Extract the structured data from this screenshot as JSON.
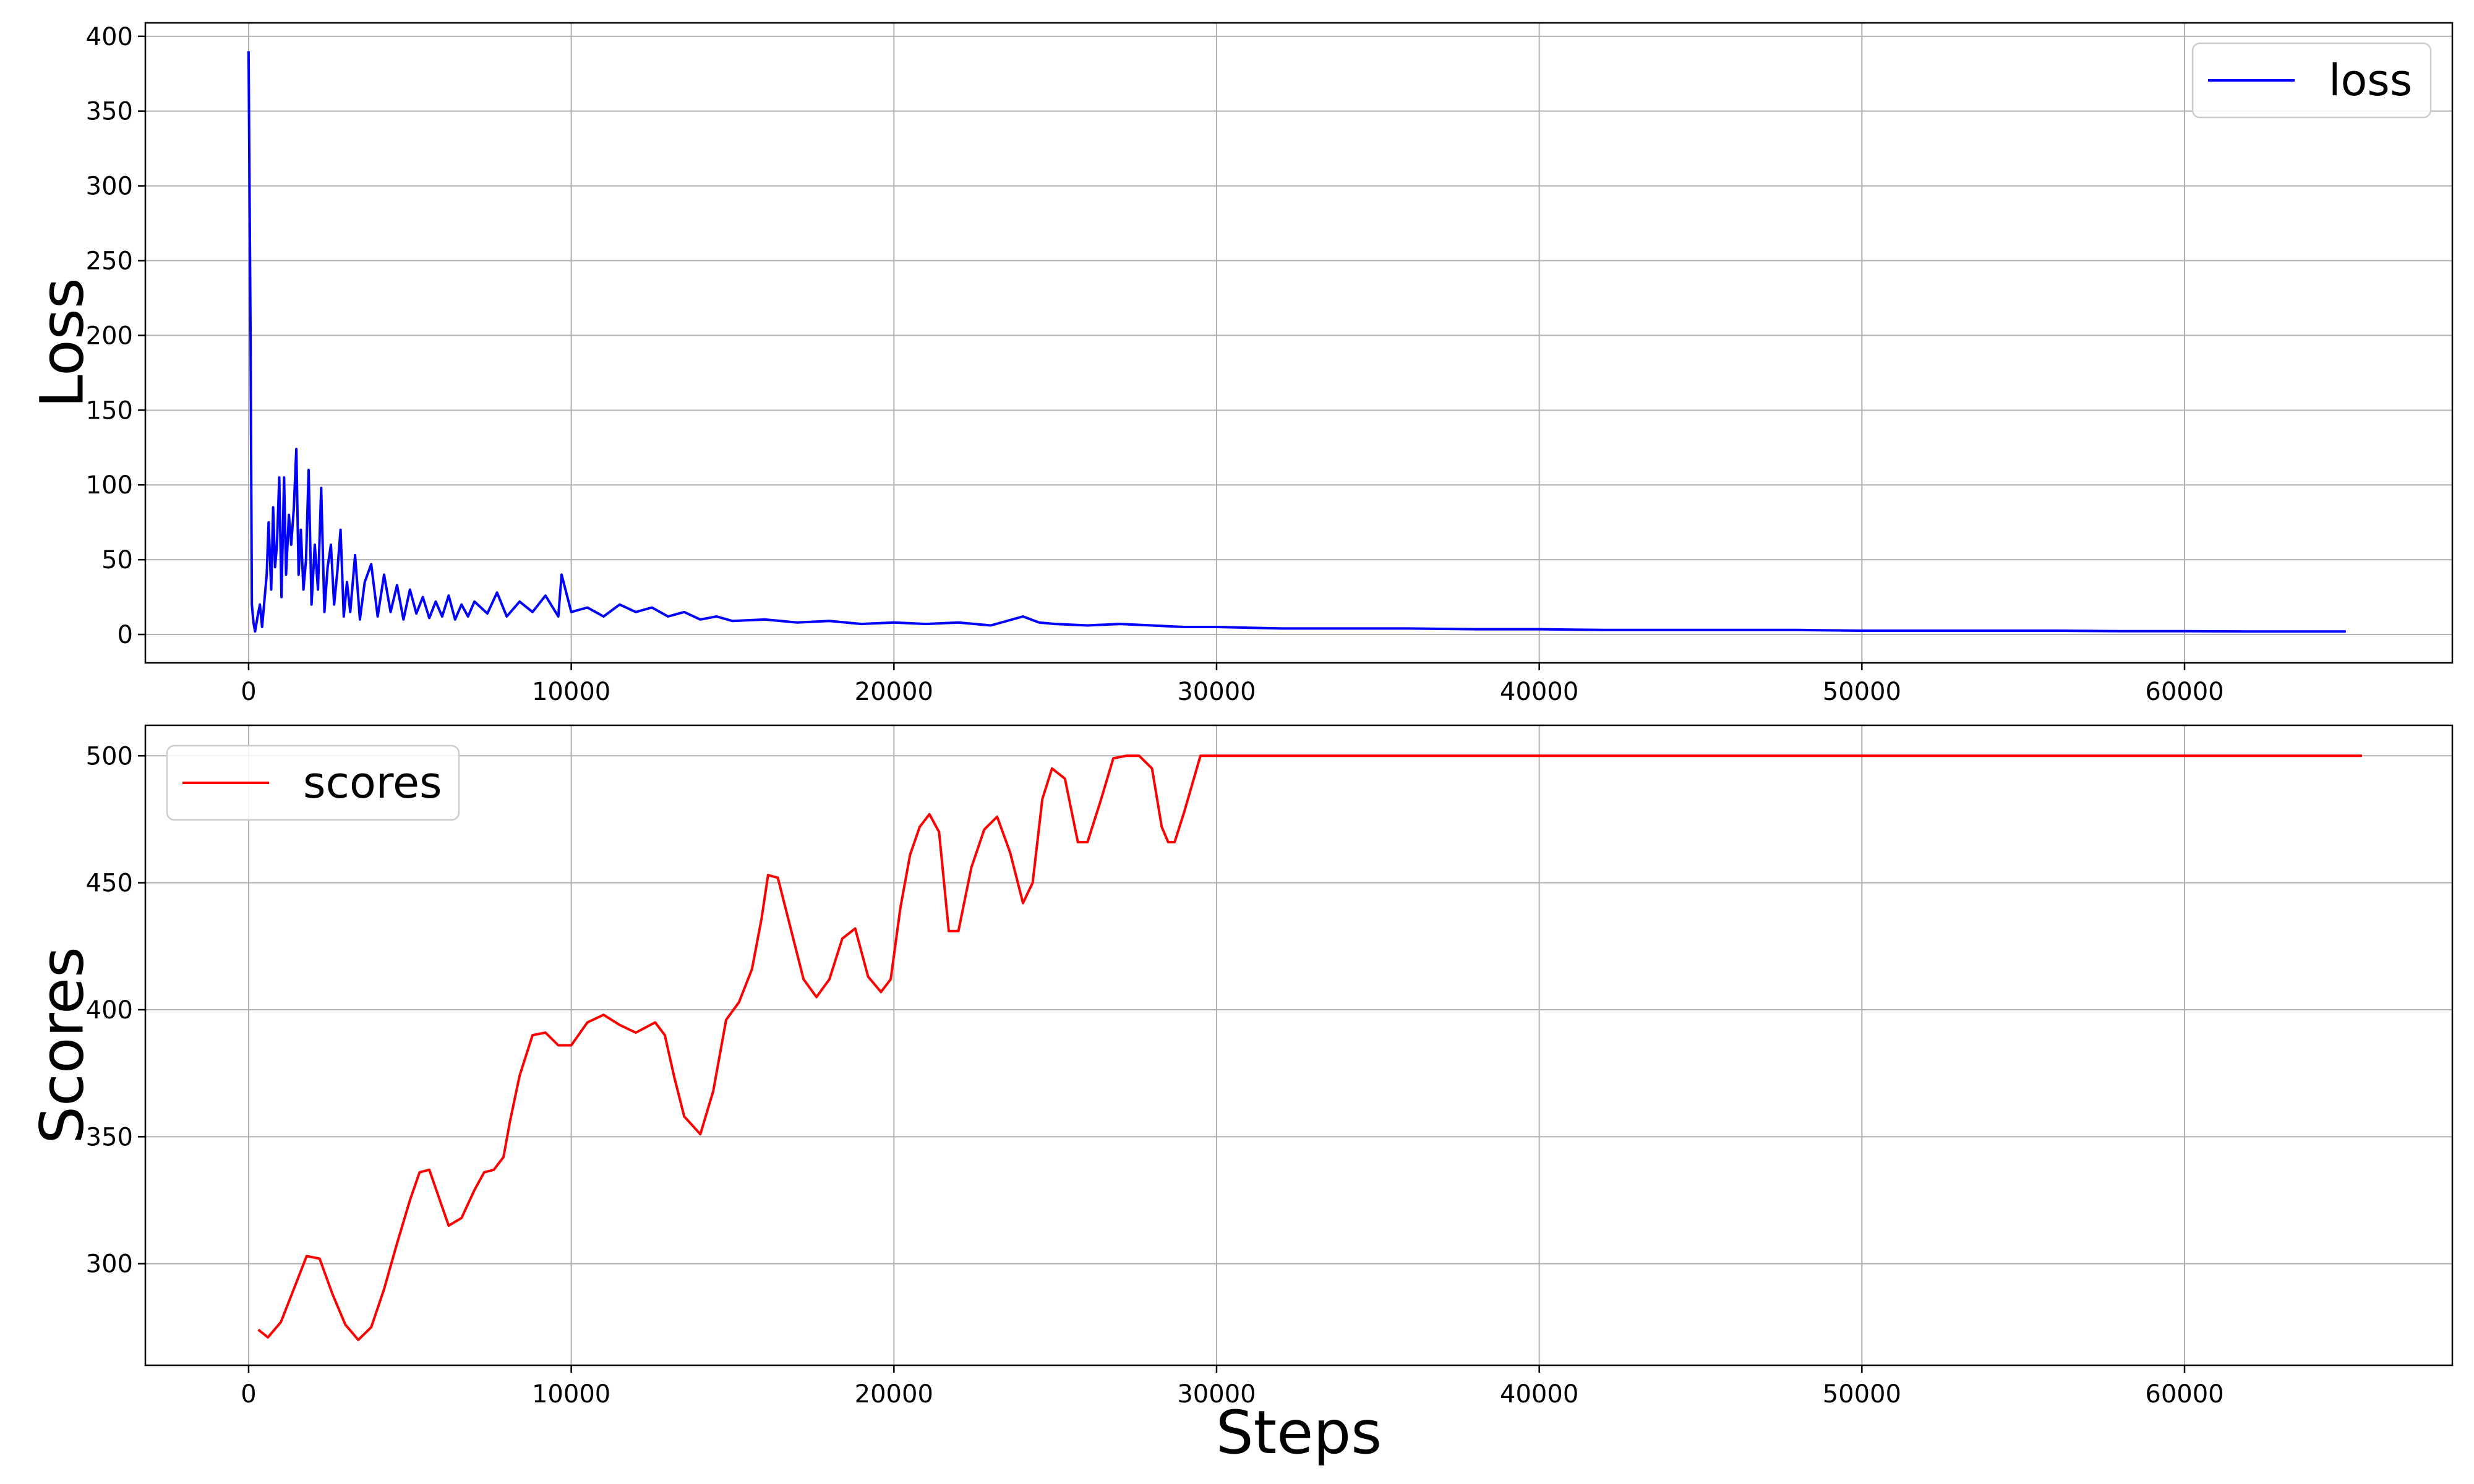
{
  "chart_data": [
    {
      "type": "line",
      "title": "",
      "xlabel": "",
      "ylabel": "Loss",
      "xlim": [
        -3200,
        68300
      ],
      "ylim": [
        -19,
        409
      ],
      "xticks": [
        0,
        10000,
        20000,
        30000,
        40000,
        50000,
        60000
      ],
      "yticks": [
        0,
        50,
        100,
        150,
        200,
        250,
        300,
        350,
        400
      ],
      "grid": true,
      "legend": "top-right",
      "series": [
        {
          "name": "loss",
          "color": "#0000ff",
          "x": [
            0,
            60,
            100,
            150,
            200,
            280,
            350,
            420,
            500,
            560,
            620,
            700,
            760,
            820,
            880,
            950,
            1020,
            1100,
            1160,
            1250,
            1320,
            1400,
            1480,
            1550,
            1620,
            1700,
            1780,
            1860,
            1950,
            2050,
            2150,
            2250,
            2350,
            2450,
            2550,
            2650,
            2750,
            2850,
            2950,
            3050,
            3150,
            3300,
            3450,
            3600,
            3800,
            4000,
            4200,
            4400,
            4600,
            4800,
            5000,
            5200,
            5400,
            5600,
            5800,
            6000,
            6200,
            6400,
            6600,
            6800,
            7000,
            7400,
            7700,
            8000,
            8400,
            8800,
            9200,
            9600,
            9700,
            10000,
            10500,
            11000,
            11500,
            12000,
            12500,
            13000,
            13500,
            14000,
            14500,
            15000,
            16000,
            17000,
            18000,
            19000,
            20000,
            21000,
            22000,
            23000,
            24000,
            24500,
            25000,
            26000,
            27000,
            28000,
            29000,
            30000,
            32000,
            34000,
            36000,
            38000,
            40000,
            42000,
            44000,
            46000,
            48000,
            50000,
            52000,
            54000,
            56000,
            58000,
            60000,
            62000,
            64000,
            65000
          ],
          "y": [
            390,
            200,
            20,
            8,
            2,
            12,
            20,
            5,
            25,
            40,
            75,
            30,
            85,
            45,
            60,
            105,
            25,
            105,
            40,
            80,
            60,
            84,
            124,
            40,
            70,
            30,
            50,
            110,
            20,
            60,
            30,
            98,
            15,
            45,
            60,
            20,
            42,
            70,
            12,
            35,
            15,
            53,
            10,
            35,
            47,
            12,
            40,
            15,
            33,
            10,
            30,
            14,
            25,
            11,
            22,
            12,
            26,
            10,
            20,
            12,
            22,
            14,
            28,
            12,
            22,
            15,
            26,
            12,
            40,
            15,
            18,
            12,
            20,
            15,
            18,
            12,
            15,
            10,
            12,
            9,
            10,
            8,
            9,
            7,
            8,
            7,
            8,
            6,
            12,
            8,
            7,
            6,
            7,
            6,
            5,
            5,
            4,
            4,
            4,
            3.5,
            3.5,
            3,
            3,
            3,
            3,
            2.5,
            2.5,
            2.5,
            2.5,
            2.2,
            2.2,
            2,
            2,
            2
          ]
        }
      ]
    },
    {
      "type": "line",
      "title": "",
      "xlabel": "Steps",
      "ylabel": "Scores",
      "xlim": [
        -3200,
        68300
      ],
      "ylim": [
        260,
        512
      ],
      "xticks": [
        0,
        10000,
        20000,
        30000,
        40000,
        50000,
        60000
      ],
      "yticks": [
        300,
        350,
        400,
        450,
        500
      ],
      "grid": true,
      "legend": "top-left",
      "series": [
        {
          "name": "scores",
          "color": "#ff0000",
          "x": [
            300,
            600,
            1000,
            1400,
            1800,
            2200,
            2600,
            3000,
            3400,
            3800,
            4200,
            4600,
            5000,
            5300,
            5600,
            5900,
            6200,
            6600,
            7000,
            7300,
            7600,
            7900,
            8100,
            8400,
            8800,
            9200,
            9600,
            10000,
            10500,
            11000,
            11500,
            12000,
            12300,
            12600,
            12900,
            13200,
            13500,
            14000,
            14400,
            14800,
            15200,
            15600,
            15900,
            16100,
            16400,
            16800,
            17200,
            17600,
            18000,
            18400,
            18800,
            19200,
            19600,
            19900,
            20200,
            20500,
            20800,
            21100,
            21400,
            21700,
            22000,
            22400,
            22800,
            23200,
            23600,
            24000,
            24300,
            24600,
            24900,
            25300,
            25700,
            26000,
            26400,
            26800,
            27200,
            27600,
            28000,
            28300,
            28500,
            28700,
            29000,
            29500,
            30000,
            35000,
            40000,
            45000,
            50000,
            55000,
            60000,
            65500
          ],
          "y": [
            274,
            271,
            277,
            290,
            303,
            302,
            288,
            276,
            270,
            275,
            290,
            308,
            325,
            336,
            337,
            326,
            315,
            318,
            329,
            336,
            337,
            342,
            356,
            374,
            390,
            391,
            386,
            386,
            395,
            398,
            394,
            391,
            393,
            395,
            390,
            373,
            358,
            351,
            368,
            396,
            403,
            416,
            436,
            453,
            452,
            432,
            412,
            405,
            412,
            428,
            432,
            413,
            407,
            412,
            440,
            461,
            472,
            477,
            470,
            431,
            431,
            456,
            471,
            476,
            462,
            442,
            450,
            483,
            495,
            491,
            466,
            466,
            482,
            499,
            500,
            500,
            495,
            472,
            466,
            466,
            478,
            500,
            500,
            500,
            500,
            500,
            500,
            500,
            500,
            500
          ]
        }
      ]
    }
  ]
}
